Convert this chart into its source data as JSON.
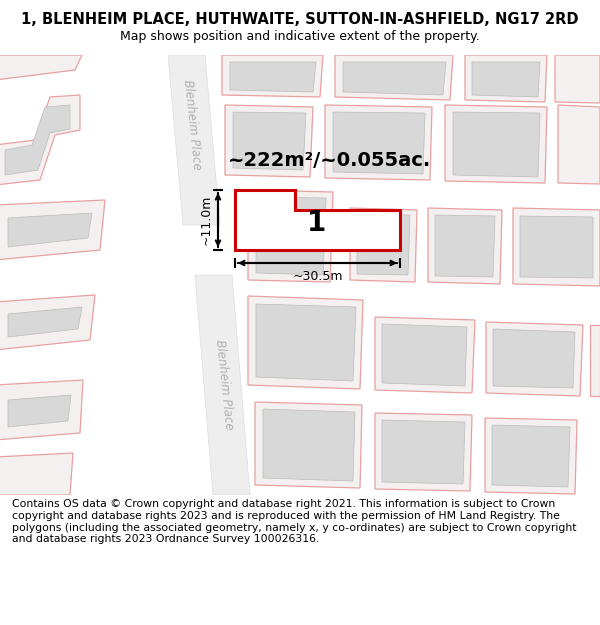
{
  "title": "1, BLENHEIM PLACE, HUTHWAITE, SUTTON-IN-ASHFIELD, NG17 2RD",
  "subtitle": "Map shows position and indicative extent of the property.",
  "footer": "Contains OS data © Crown copyright and database right 2021. This information is subject to Crown copyright and database rights 2023 and is reproduced with the permission of HM Land Registry. The polygons (including the associated geometry, namely x, y co-ordinates) are subject to Crown copyright and database rights 2023 Ordnance Survey 100026316.",
  "area_label": "~222m²/~0.055ac.",
  "width_label": "~30.5m",
  "height_label": "~11.0m",
  "parcel_number": "1",
  "map_bg": "#ffffff",
  "road_fill": "#eeeeee",
  "building_outer_fill": "#f5f0f0",
  "building_outer_stroke": "#e8a0a0",
  "building_inner_fill": "#d8d8d8",
  "building_inner_stroke": "#bbbbbb",
  "red_outline": "#cc0000",
  "road_text_color": "#b0b0b0",
  "title_fontsize": 10.5,
  "subtitle_fontsize": 9,
  "footer_fontsize": 7.8,
  "area_fontsize": 14,
  "dim_fontsize": 9,
  "parcel_fontsize": 20
}
